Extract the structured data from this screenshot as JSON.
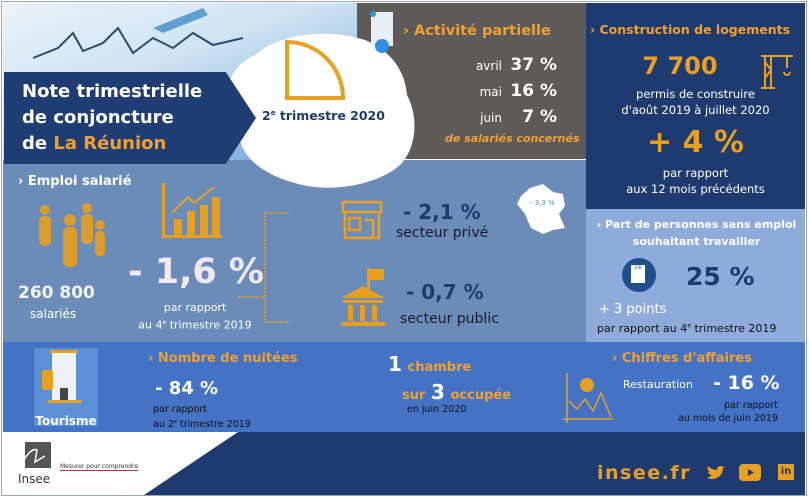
{
  "title": {
    "line1": "Note trimestrielle",
    "line2": "de conjoncture",
    "line3_prefix": "de",
    "region": "La Réunion",
    "period_num": "2",
    "period_sup": "e",
    "period_rest": "trimestre 2020"
  },
  "activite": {
    "heading": "› Activité partielle",
    "rows": [
      {
        "month": "avril",
        "value": "37 %"
      },
      {
        "month": "mai",
        "value": "16 %"
      },
      {
        "month": "juin",
        "value": "7 %"
      }
    ],
    "note": "de salariés concernés"
  },
  "construction": {
    "heading": "› Construction de logements",
    "value": "7 700",
    "desc1": "permis de construire",
    "desc2": "d'août 2019 à juillet 2020",
    "change": "+ 4 %",
    "cmp1": "par rapport",
    "cmp2": "aux 12 mois précédents"
  },
  "emploi": {
    "heading": "› Emploi salarié",
    "count": "260 800",
    "count_label": "salariés",
    "change": "- 1,6 %",
    "cmp1": "par rapport",
    "cmp2_pre": "au 4",
    "cmp2_sup": "e",
    "cmp2_post": "trimestre 2019",
    "prive_value": "- 2,1 %",
    "prive_label": "secteur privé",
    "public_value": "- 0,7 %",
    "public_label": "secteur public",
    "france_value": "- 3,3 %"
  },
  "sans_emploi": {
    "heading1": "› Part de personnes sans emploi",
    "heading2": "souhaitant travailler",
    "icon_text": "JOB",
    "value": "25 %",
    "change": "+ 3 points",
    "cmp_pre": "par rapport au 4",
    "cmp_sup": "e",
    "cmp_post": "trimestre 2019"
  },
  "tourisme": {
    "label": "Tourisme",
    "nuitees_heading": "› Nombre de nuitées",
    "nuitees_value": "- 84 %",
    "nuitees_cmp1": "par rapport",
    "nuitees_cmp2_pre": "au 2",
    "nuitees_cmp2_sup": "e",
    "nuitees_cmp2_post": "trimestre 2019",
    "ch_num1": "1",
    "ch_word1": "chambre",
    "ch_sur": "sur",
    "ch_num2": "3",
    "ch_word2": "occupée",
    "ch_when": "en juin 2020",
    "ca_heading": "› Chiffres d'affaires",
    "ca_sector": "Restauration",
    "ca_value": "- 16 %",
    "ca_cmp1": "par rapport",
    "ca_cmp2": "au mois de juin 2019"
  },
  "footer": {
    "logo": "Insee",
    "tagline": "Mesurer pour comprendre",
    "site": "insee.fr"
  }
}
